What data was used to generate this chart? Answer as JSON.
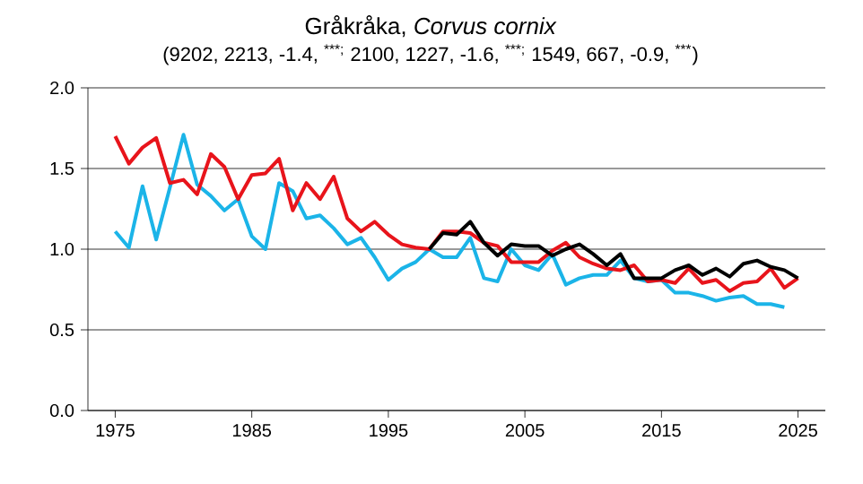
{
  "chart_data": {
    "type": "line",
    "title": "Gråkråka, *Corvus cornix*",
    "subtitle": "(9202, 2213, -1.4, $^{***;}$  2100, 1227, -1.6, $^{***;}$ 1549, 667, -0.9, $^{***}$)",
    "xlim": [
      1973,
      2027
    ],
    "xticks": [
      1975,
      1985,
      1995,
      2005,
      2015,
      2025
    ],
    "ylim": [
      0,
      2
    ],
    "yticks": [
      {
        "value": 0,
        "label": "0.0"
      },
      {
        "value": 0.5,
        "label": "0.5"
      },
      {
        "value": 1,
        "label": "1.0"
      },
      {
        "value": 1.5,
        "label": "1.5"
      },
      {
        "value": 2,
        "label": "2.0"
      }
    ],
    "grid": "y",
    "marker": "none",
    "line_style": "solid",
    "series": [
      {
        "color": "#1bb4e8",
        "x": [
          1975,
          1976,
          1977,
          1978,
          1979,
          1980,
          1981,
          1982,
          1983,
          1984,
          1985,
          1986,
          1987,
          1988,
          1989,
          1990,
          1991,
          1992,
          1993,
          1994,
          1995,
          1996,
          1997,
          1998,
          1999,
          2000,
          2001,
          2002,
          2003,
          2004,
          2005,
          2006,
          2007,
          2008,
          2009,
          2010,
          2011,
          2012,
          2013,
          2014,
          2015,
          2016,
          2017,
          2018,
          2019,
          2020,
          2021,
          2022,
          2023,
          2024
        ],
        "values": [
          1.11,
          1.01,
          1.39,
          1.06,
          1.38,
          1.71,
          1.4,
          1.33,
          1.24,
          1.31,
          1.08,
          1.0,
          1.41,
          1.36,
          1.19,
          1.21,
          1.13,
          1.03,
          1.07,
          0.95,
          0.81,
          0.88,
          0.92,
          1.0,
          0.95,
          0.95,
          1.07,
          0.82,
          0.8,
          1.0,
          0.9,
          0.87,
          0.97,
          0.78,
          0.82,
          0.84,
          0.84,
          0.93,
          0.82,
          0.8,
          0.81,
          0.73,
          0.73,
          0.71,
          0.68,
          0.7,
          0.71,
          0.66,
          0.66,
          0.64
        ]
      },
      {
        "color": "#e8141b",
        "x": [
          1975,
          1976,
          1977,
          1978,
          1979,
          1980,
          1981,
          1982,
          1983,
          1984,
          1985,
          1986,
          1987,
          1988,
          1989,
          1990,
          1991,
          1992,
          1993,
          1994,
          1995,
          1996,
          1997,
          1998,
          1999,
          2000,
          2001,
          2002,
          2003,
          2004,
          2005,
          2006,
          2007,
          2008,
          2009,
          2010,
          2011,
          2012,
          2013,
          2014,
          2015,
          2016,
          2017,
          2018,
          2019,
          2020,
          2021,
          2022,
          2023,
          2024,
          2025
        ],
        "values": [
          1.7,
          1.53,
          1.63,
          1.69,
          1.41,
          1.43,
          1.34,
          1.59,
          1.51,
          1.31,
          1.46,
          1.47,
          1.56,
          1.24,
          1.41,
          1.31,
          1.45,
          1.19,
          1.11,
          1.17,
          1.09,
          1.03,
          1.01,
          1.0,
          1.11,
          1.11,
          1.1,
          1.04,
          1.02,
          0.92,
          0.92,
          0.92,
          0.99,
          1.04,
          0.95,
          0.91,
          0.88,
          0.87,
          0.9,
          0.8,
          0.81,
          0.79,
          0.88,
          0.79,
          0.81,
          0.74,
          0.79,
          0.8,
          0.88,
          0.76,
          0.82
        ]
      },
      {
        "color": "#000000",
        "x": [
          1998,
          1999,
          2000,
          2001,
          2002,
          2003,
          2004,
          2005,
          2006,
          2007,
          2008,
          2009,
          2010,
          2011,
          2012,
          2013,
          2014,
          2015,
          2016,
          2017,
          2018,
          2019,
          2020,
          2021,
          2022,
          2023,
          2024,
          2025
        ],
        "values": [
          1.0,
          1.1,
          1.09,
          1.17,
          1.04,
          0.96,
          1.03,
          1.02,
          1.02,
          0.96,
          1.0,
          1.03,
          0.97,
          0.9,
          0.97,
          0.82,
          0.82,
          0.82,
          0.87,
          0.9,
          0.84,
          0.88,
          0.83,
          0.91,
          0.93,
          0.89,
          0.87,
          0.82
        ]
      }
    ]
  }
}
